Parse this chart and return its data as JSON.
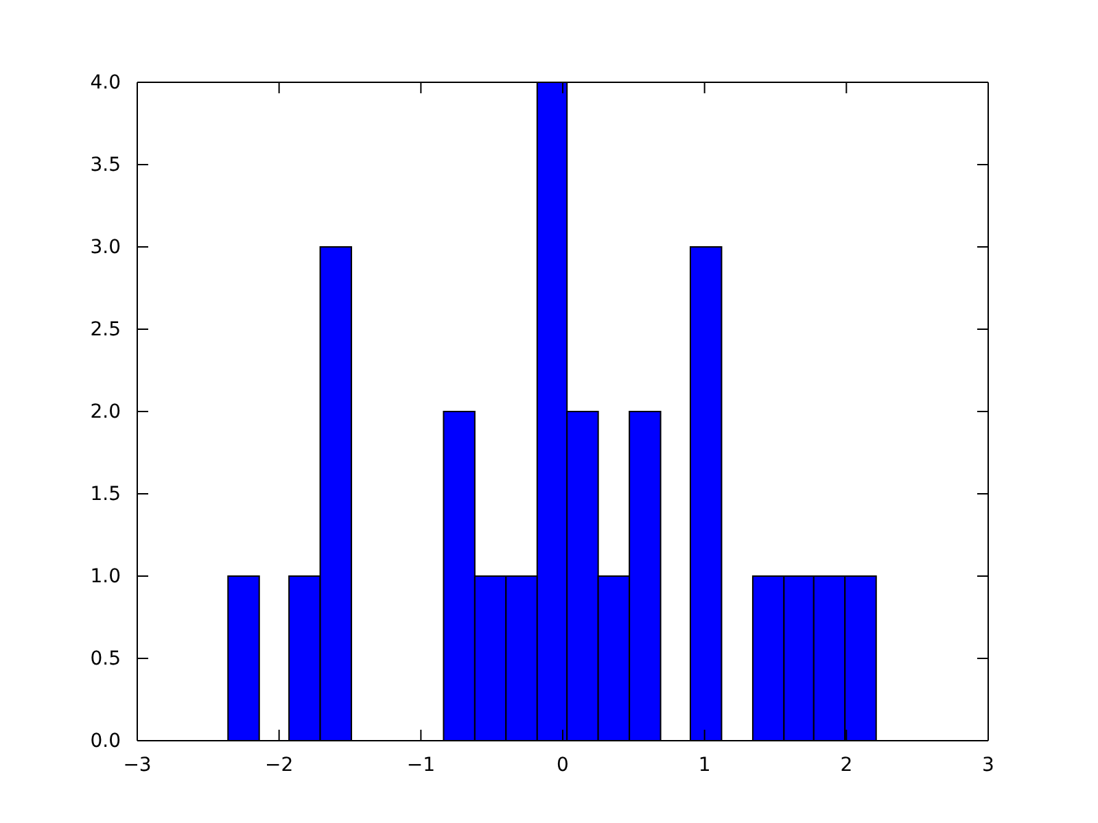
{
  "chart_data": {
    "type": "histogram",
    "bins": [
      -2.36,
      -2.14,
      -1.93,
      -1.71,
      -1.49,
      -0.84,
      -0.62,
      -0.4,
      -0.18,
      0.03,
      0.25,
      0.47,
      0.69,
      0.9,
      1.12,
      1.34,
      1.56,
      1.77,
      1.99,
      2.21
    ],
    "values": [
      1,
      0,
      1,
      3,
      0,
      2,
      1,
      1,
      4,
      2,
      1,
      2,
      0,
      3,
      0,
      1,
      1,
      1,
      1
    ],
    "color": "#0000ff",
    "xlim": [
      -3,
      3
    ],
    "xticks": [
      {
        "value": -3,
        "label": "−3"
      },
      {
        "value": -2,
        "label": "−2"
      },
      {
        "value": -1,
        "label": "−1"
      },
      0,
      1,
      2,
      3
    ],
    "ylim": [
      0,
      4
    ],
    "yticks": [
      {
        "value": 0,
        "label": "0.0"
      },
      {
        "value": 0.5,
        "label": "0.5"
      },
      {
        "value": 1,
        "label": "1.0"
      },
      {
        "value": 1.5,
        "label": "1.5"
      },
      {
        "value": 2,
        "label": "2.0"
      },
      {
        "value": 2.5,
        "label": "2.5"
      },
      {
        "value": 3,
        "label": "3.0"
      },
      {
        "value": 3.5,
        "label": "3.5"
      },
      {
        "value": 4,
        "label": "4.0"
      }
    ],
    "grid": false
  }
}
